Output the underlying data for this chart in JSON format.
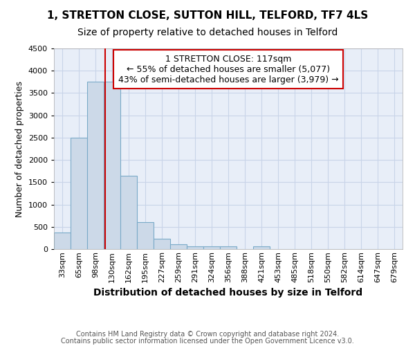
{
  "title": "1, STRETTON CLOSE, SUTTON HILL, TELFORD, TF7 4LS",
  "subtitle": "Size of property relative to detached houses in Telford",
  "xlabel": "Distribution of detached houses by size in Telford",
  "ylabel": "Number of detached properties",
  "categories": [
    "33sqm",
    "65sqm",
    "98sqm",
    "130sqm",
    "162sqm",
    "195sqm",
    "227sqm",
    "259sqm",
    "291sqm",
    "324sqm",
    "356sqm",
    "388sqm",
    "421sqm",
    "453sqm",
    "485sqm",
    "518sqm",
    "550sqm",
    "582sqm",
    "614sqm",
    "647sqm",
    "679sqm"
  ],
  "values": [
    380,
    2500,
    3750,
    3750,
    1640,
    600,
    240,
    110,
    65,
    55,
    55,
    0,
    65,
    0,
    0,
    0,
    0,
    0,
    0,
    0,
    0
  ],
  "bar_color": "#ccd9e8",
  "bar_edge_color": "#7aaac8",
  "vline_color": "#cc0000",
  "vline_x_index": 2.59,
  "annotation_text": "1 STRETTON CLOSE: 117sqm\n← 55% of detached houses are smaller (5,077)\n43% of semi-detached houses are larger (3,979) →",
  "annotation_box_color": "#cc0000",
  "ylim": [
    0,
    4500
  ],
  "yticks": [
    0,
    500,
    1000,
    1500,
    2000,
    2500,
    3000,
    3500,
    4000,
    4500
  ],
  "grid_color": "#c8d4e8",
  "bg_color": "#e8eef8",
  "footer_line1": "Contains HM Land Registry data © Crown copyright and database right 2024.",
  "footer_line2": "Contains public sector information licensed under the Open Government Licence v3.0.",
  "title_fontsize": 11,
  "subtitle_fontsize": 10,
  "xlabel_fontsize": 10,
  "ylabel_fontsize": 9,
  "tick_fontsize": 8,
  "annotation_fontsize": 9,
  "footer_fontsize": 7
}
